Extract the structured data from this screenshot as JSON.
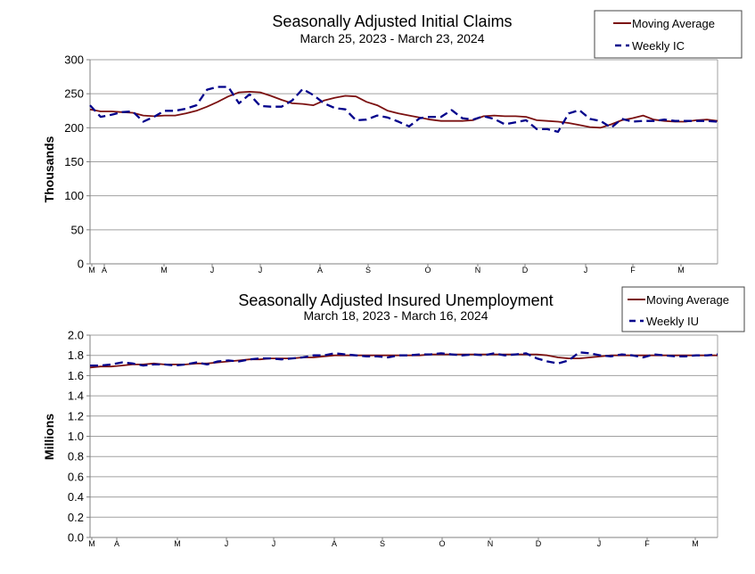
{
  "colors": {
    "moving_average": "#7b1010",
    "weekly": "#00008b",
    "grid": "#a0a0a0",
    "axis": "#808080"
  },
  "chart_data": [
    {
      "type": "line",
      "title": "Seasonally Adjusted Initial Claims",
      "subtitle": "March 25, 2023 - March 23, 2024",
      "ylabel": "Thousands",
      "ylim": [
        0,
        300
      ],
      "yticks": [
        "0",
        "50",
        "100",
        "150",
        "200",
        "250",
        "300"
      ],
      "month_labels": [
        "M",
        "A",
        "M",
        "J",
        "J",
        "A",
        "S",
        "O",
        "N",
        "D",
        "J",
        "F",
        "M"
      ],
      "legend": [
        "Moving Average",
        "Weekly IC"
      ],
      "series": [
        {
          "name": "Moving Average",
          "style": "solid",
          "values": [
            227,
            224,
            224,
            223,
            222,
            218,
            217,
            218,
            218,
            221,
            225,
            231,
            238,
            246,
            252,
            253,
            252,
            247,
            241,
            236,
            235,
            233,
            240,
            244,
            247,
            246,
            238,
            233,
            225,
            221,
            218,
            215,
            212,
            210,
            210,
            210,
            211,
            217,
            218,
            217,
            217,
            216,
            211,
            210,
            209,
            207,
            204,
            201,
            200,
            205,
            211,
            214,
            218,
            212,
            210,
            209,
            209,
            211,
            212,
            210
          ]
        },
        {
          "name": "Weekly IC",
          "style": "dashed",
          "values": [
            233,
            216,
            219,
            223,
            224,
            209,
            216,
            225,
            225,
            228,
            233,
            256,
            260,
            260,
            236,
            249,
            232,
            231,
            231,
            240,
            257,
            248,
            236,
            229,
            227,
            211,
            212,
            218,
            215,
            209,
            202,
            214,
            216,
            216,
            226,
            214,
            212,
            217,
            213,
            205,
            208,
            211,
            198,
            198,
            194,
            221,
            226,
            213,
            210,
            200,
            213,
            209,
            210,
            210,
            212,
            210,
            210,
            210,
            210,
            209
          ]
        }
      ]
    },
    {
      "type": "line",
      "title": "Seasonally Adjusted Insured Unemployment",
      "subtitle": "March 18, 2023 - March 16, 2024",
      "ylabel": "Millions",
      "ylim": [
        0,
        2
      ],
      "yticks": [
        "0.0",
        "0.2",
        "0.4",
        "0.6",
        "0.8",
        "1.0",
        "1.2",
        "1.4",
        "1.6",
        "1.8",
        "2.0"
      ],
      "month_labels": [
        "M",
        "A",
        "M",
        "J",
        "J",
        "A",
        "S",
        "O",
        "N",
        "D",
        "J",
        "F",
        "M"
      ],
      "legend": [
        "Moving Average",
        "Weekly IU"
      ],
      "series": [
        {
          "name": "Moving Average",
          "style": "solid",
          "values": [
            1.68,
            1.69,
            1.69,
            1.7,
            1.71,
            1.71,
            1.72,
            1.71,
            1.71,
            1.71,
            1.72,
            1.72,
            1.73,
            1.74,
            1.75,
            1.76,
            1.76,
            1.77,
            1.77,
            1.77,
            1.78,
            1.78,
            1.79,
            1.8,
            1.8,
            1.8,
            1.8,
            1.8,
            1.8,
            1.8,
            1.8,
            1.8,
            1.81,
            1.81,
            1.81,
            1.81,
            1.81,
            1.81,
            1.81,
            1.81,
            1.81,
            1.81,
            1.81,
            1.8,
            1.78,
            1.77,
            1.77,
            1.78,
            1.79,
            1.8,
            1.8,
            1.8,
            1.8,
            1.8,
            1.8,
            1.8,
            1.8,
            1.8,
            1.8,
            1.8
          ]
        },
        {
          "name": "Weekly IU",
          "style": "dashed",
          "values": [
            1.7,
            1.7,
            1.71,
            1.73,
            1.72,
            1.7,
            1.71,
            1.71,
            1.7,
            1.71,
            1.73,
            1.71,
            1.74,
            1.75,
            1.74,
            1.76,
            1.77,
            1.77,
            1.76,
            1.77,
            1.78,
            1.8,
            1.8,
            1.82,
            1.81,
            1.8,
            1.79,
            1.79,
            1.78,
            1.8,
            1.8,
            1.81,
            1.81,
            1.82,
            1.81,
            1.8,
            1.81,
            1.8,
            1.82,
            1.8,
            1.81,
            1.82,
            1.77,
            1.74,
            1.72,
            1.75,
            1.83,
            1.82,
            1.8,
            1.79,
            1.81,
            1.8,
            1.78,
            1.81,
            1.8,
            1.79,
            1.79,
            1.8,
            1.8,
            1.81
          ]
        }
      ]
    }
  ]
}
